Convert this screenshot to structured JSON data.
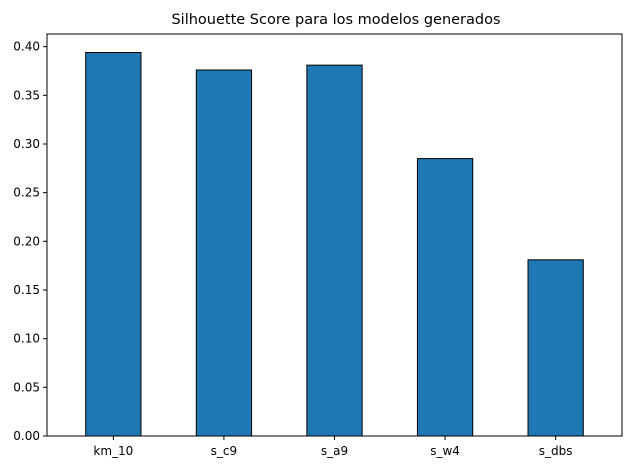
{
  "chart_data": {
    "type": "bar",
    "title": "Silhouette Score para los modelos generados",
    "xlabel": "",
    "ylabel": "",
    "categories": [
      "km_10",
      "s_c9",
      "s_a9",
      "s_w4",
      "s_dbs"
    ],
    "values": [
      0.394,
      0.376,
      0.381,
      0.285,
      0.181
    ],
    "ylim": [
      0,
      0.413
    ],
    "yticks": [
      "0.00",
      "0.05",
      "0.10",
      "0.15",
      "0.20",
      "0.25",
      "0.30",
      "0.35",
      "0.40"
    ],
    "grid": false,
    "legend": "none",
    "bar_color": "#1f77b4",
    "bar_edge_color": "#000000"
  }
}
